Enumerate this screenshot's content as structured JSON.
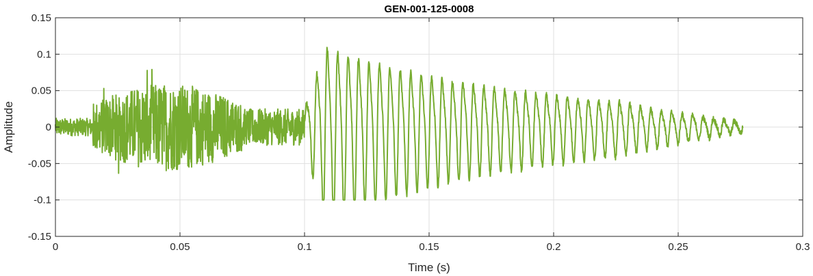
{
  "chart_data": {
    "type": "line",
    "title": "GEN-001-125-0008",
    "xlabel": "Time (s)",
    "ylabel": "Amplitude",
    "xlim": [
      0,
      0.3
    ],
    "ylim": [
      -0.15,
      0.15
    ],
    "x_ticks": [
      0,
      0.05,
      0.1,
      0.15,
      0.2,
      0.25,
      0.3
    ],
    "x_tick_labels": [
      "0",
      "0.05",
      "0.1",
      "0.15",
      "0.2",
      "0.25",
      "0.3"
    ],
    "y_ticks": [
      -0.15,
      -0.1,
      -0.05,
      0,
      0.05,
      0.1,
      0.15
    ],
    "y_tick_labels": [
      "-0.15",
      "-0.1",
      "-0.05",
      "0",
      "0.05",
      "0.1",
      "0.15"
    ],
    "grid": true,
    "line_color": "#77AC30",
    "series": [
      {
        "x_start": 0,
        "x_end": 0.276,
        "segments": [
          {
            "x0": 0.0,
            "x1": 0.015,
            "style": "noise",
            "amplitude": 0.012
          },
          {
            "x0": 0.015,
            "x1": 0.075,
            "style": "noise",
            "amplitude": 0.06,
            "peak_max": 0.085,
            "peak_min": -0.08
          },
          {
            "x0": 0.075,
            "x1": 0.1,
            "style": "noise",
            "amplitude": 0.025
          },
          {
            "x0": 0.1,
            "x1": 0.276,
            "style": "oscillation",
            "cycles": 42,
            "peak_max": 0.135,
            "peak_min": -0.1
          }
        ]
      }
    ]
  }
}
